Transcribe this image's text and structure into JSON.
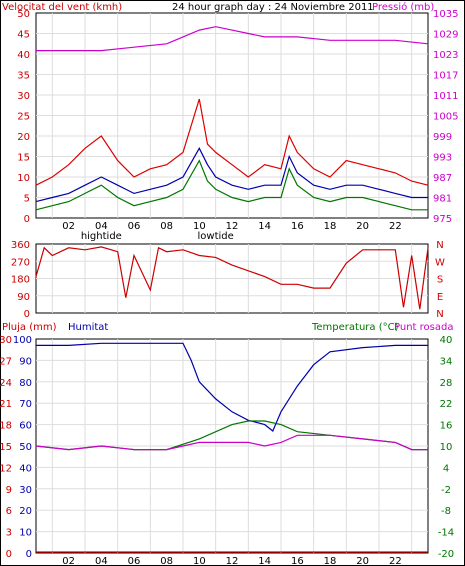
{
  "chart_data": [
    {
      "type": "line",
      "panel": "wind-pressure",
      "title": "24 hour graph day : 24 Noviembre 2011",
      "left_label": "Velocitat del vent (kmh)",
      "right_label": "Pressió (mb)",
      "y_left": {
        "ticks": [
          "0",
          "5",
          "10",
          "15",
          "20",
          "25",
          "30",
          "35",
          "40",
          "45",
          "50"
        ],
        "range": [
          0,
          50
        ]
      },
      "y_right": {
        "ticks": [
          "975",
          "981",
          "987",
          "993",
          "999",
          "1005",
          "1011",
          "1017",
          "1023",
          "1029",
          "1035"
        ],
        "range": [
          975,
          1035
        ]
      },
      "x_ticks": [
        "02",
        "04",
        "06",
        "08",
        "10",
        "12",
        "14",
        "16",
        "18",
        "20",
        "22"
      ],
      "x_markers": [
        "hightide",
        "lowtide"
      ],
      "series": [
        {
          "key": "pressure",
          "color": "#cc00cc",
          "axis": "right",
          "x": [
            0,
            2,
            4,
            6,
            8,
            9,
            10,
            11,
            12,
            13,
            14,
            16,
            18,
            20,
            22,
            24
          ],
          "y": [
            1024,
            1024,
            1024,
            1025,
            1026,
            1028,
            1030,
            1031,
            1030,
            1029,
            1028,
            1028,
            1027,
            1027,
            1027,
            1026
          ]
        },
        {
          "key": "gust",
          "color": "#dd0000",
          "axis": "left",
          "x": [
            0,
            1,
            2,
            3,
            4,
            5,
            6,
            7,
            8,
            9,
            10,
            10.5,
            11,
            12,
            13,
            14,
            15,
            15.5,
            16,
            17,
            18,
            19,
            20,
            21,
            22,
            23,
            24
          ],
          "y": [
            8,
            10,
            13,
            17,
            20,
            14,
            10,
            12,
            13,
            16,
            29,
            18,
            16,
            13,
            10,
            13,
            12,
            20,
            16,
            12,
            10,
            14,
            13,
            12,
            11,
            9,
            8
          ]
        },
        {
          "key": "average",
          "color": "#0000aa",
          "axis": "left",
          "x": [
            0,
            1,
            2,
            3,
            4,
            5,
            6,
            7,
            8,
            9,
            10,
            10.5,
            11,
            12,
            13,
            14,
            15,
            15.5,
            16,
            17,
            18,
            19,
            20,
            21,
            22,
            23,
            24
          ],
          "y": [
            4,
            5,
            6,
            8,
            10,
            8,
            6,
            7,
            8,
            10,
            17,
            13,
            10,
            8,
            7,
            8,
            8,
            15,
            11,
            8,
            7,
            8,
            8,
            7,
            6,
            5,
            5
          ]
        },
        {
          "key": "speed",
          "color": "#007700",
          "axis": "left",
          "x": [
            0,
            1,
            2,
            3,
            4,
            5,
            6,
            7,
            8,
            9,
            10,
            10.5,
            11,
            12,
            13,
            14,
            15,
            15.5,
            16,
            17,
            18,
            19,
            20,
            21,
            22,
            23,
            24
          ],
          "y": [
            2,
            3,
            4,
            6,
            8,
            5,
            3,
            4,
            5,
            7,
            14,
            9,
            7,
            5,
            4,
            5,
            5,
            12,
            8,
            5,
            4,
            5,
            5,
            4,
            3,
            2,
            2
          ]
        }
      ]
    },
    {
      "type": "line",
      "panel": "wind-direction",
      "y_left": {
        "ticks": [
          "0",
          "90",
          "180",
          "270",
          "360"
        ],
        "range": [
          0,
          360
        ]
      },
      "y_right": {
        "ticks": [
          "N",
          "E",
          "S",
          "W",
          "N"
        ]
      },
      "series": [
        {
          "key": "direction",
          "color": "#cc0000",
          "x": [
            0,
            0.5,
            1,
            2,
            3,
            4,
            5,
            5.5,
            6,
            7,
            7.5,
            8,
            9,
            10,
            11,
            12,
            13,
            14,
            15,
            16,
            17,
            18,
            19,
            20,
            21,
            22,
            22.5,
            23,
            23.5,
            24
          ],
          "y": [
            190,
            340,
            300,
            340,
            330,
            345,
            320,
            80,
            300,
            120,
            340,
            320,
            330,
            300,
            290,
            250,
            220,
            190,
            150,
            150,
            130,
            130,
            260,
            330,
            330,
            330,
            30,
            300,
            20,
            340
          ]
        }
      ]
    },
    {
      "type": "line",
      "panel": "rain-humidity-temperature",
      "labels": [
        "Pluja (mm)",
        "Humitat",
        "Temperatura (°C)",
        "Punt rosada"
      ],
      "y_rain": {
        "ticks": [
          "0",
          "3",
          "6",
          "9",
          "12",
          "15",
          "18",
          "21",
          "24",
          "27",
          "30"
        ],
        "range": [
          0,
          30
        ]
      },
      "y_hum": {
        "ticks": [
          "0",
          "10",
          "20",
          "30",
          "40",
          "50",
          "60",
          "70",
          "80",
          "90",
          "100"
        ],
        "range": [
          0,
          100
        ]
      },
      "y_temp": {
        "ticks": [
          "-20",
          "-14",
          "-8",
          "-2",
          "4",
          "10",
          "16",
          "22",
          "28",
          "34",
          "40"
        ],
        "range": [
          -20,
          40
        ]
      },
      "x_ticks": [
        "02",
        "04",
        "06",
        "08",
        "10",
        "12",
        "14",
        "16",
        "18",
        "20",
        "22"
      ],
      "x_markers": [
        "hightide",
        "lowtide"
      ],
      "series": [
        {
          "key": "humidity",
          "color": "#0000aa",
          "axis": "hum",
          "x": [
            0,
            2,
            4,
            6,
            8,
            9,
            9.5,
            10,
            11,
            12,
            13,
            14,
            14.5,
            15,
            16,
            17,
            18,
            20,
            22,
            24
          ],
          "y": [
            97,
            97,
            98,
            98,
            98,
            98,
            90,
            80,
            72,
            66,
            62,
            60,
            57,
            66,
            78,
            88,
            94,
            96,
            97,
            97
          ]
        },
        {
          "key": "temperature",
          "color": "#007700",
          "axis": "temp",
          "x": [
            0,
            2,
            4,
            6,
            8,
            10,
            12,
            13,
            14,
            15,
            16,
            18,
            20,
            22,
            23,
            24
          ],
          "y": [
            10,
            9,
            10,
            9,
            9,
            12,
            16,
            17,
            17,
            16,
            14,
            13,
            12,
            11,
            9,
            9
          ]
        },
        {
          "key": "dewpoint",
          "color": "#cc00cc",
          "axis": "temp",
          "x": [
            0,
            2,
            4,
            6,
            8,
            10,
            12,
            13,
            14,
            15,
            16,
            18,
            20,
            22,
            23,
            24
          ],
          "y": [
            10,
            9,
            10,
            9,
            9,
            11,
            11,
            11,
            10,
            11,
            13,
            13,
            12,
            11,
            9,
            9
          ]
        },
        {
          "key": "rain",
          "color": "#dd0000",
          "axis": "rain",
          "x": [
            0,
            24
          ],
          "y": [
            0,
            0
          ]
        }
      ]
    }
  ]
}
